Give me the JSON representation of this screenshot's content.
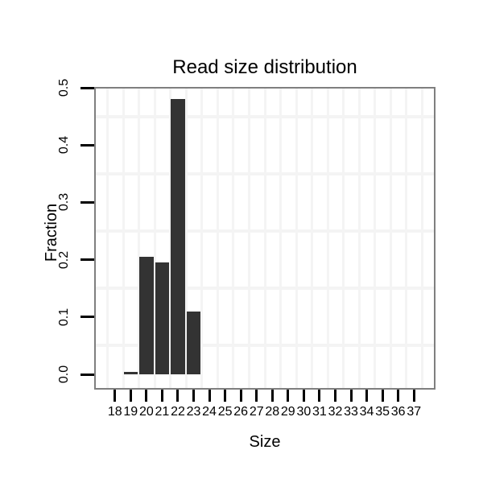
{
  "chart_data": {
    "type": "bar",
    "title": "Read size distribution",
    "xlabel": "Size",
    "ylabel": "Fraction",
    "categories": [
      "18",
      "19",
      "20",
      "21",
      "22",
      "23",
      "24",
      "25",
      "26",
      "27",
      "28",
      "29",
      "30",
      "31",
      "32",
      "33",
      "34",
      "35",
      "36",
      "37"
    ],
    "values": [
      0,
      0.004,
      0.205,
      0.195,
      0.48,
      0.11,
      0,
      0,
      0,
      0,
      0,
      0,
      0,
      0,
      0,
      0,
      0,
      0,
      0,
      0
    ],
    "ylim": [
      0,
      0.5
    ],
    "yticks": [
      0.0,
      0.1,
      0.2,
      0.3,
      0.4,
      0.5
    ],
    "ytick_labels": [
      "0.0",
      "0.1",
      "0.2",
      "0.3",
      "0.4",
      "0.5"
    ],
    "minor_grid_values": [
      0.05,
      0.15,
      0.25,
      0.35,
      0.45
    ],
    "grid": true,
    "legend": "none",
    "bar_color": "#333333",
    "panel_border_color": "#7f7f7f",
    "gridline_color": "#f4f4f4",
    "axis_tick_color": "#000000",
    "text_color": "#000000",
    "background_color": "#ffffff"
  }
}
